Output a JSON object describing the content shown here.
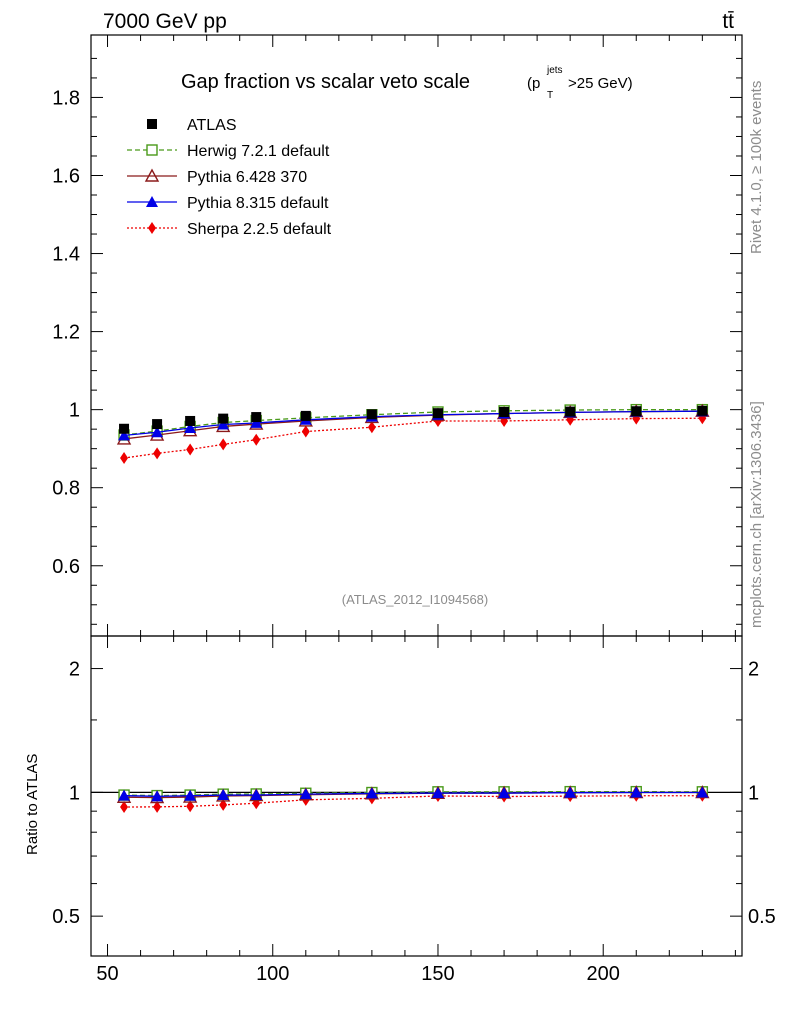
{
  "header": {
    "energy": "7000 GeV pp",
    "process": "tt̄",
    "side_top": "Rivet 4.1.0, ≥ 100k events",
    "side_bottom": "mcplots.cern.ch [arXiv:1306.3436]"
  },
  "chart_data": {
    "type": "line",
    "title": "Gap fraction vs scalar veto scale",
    "title_suffix": {
      "p": "(p",
      "sup": "jets",
      "sub": "T",
      "rest": ">25 GeV)"
    },
    "watermark": "(ATLAS_2012_I1094568)",
    "x": [
      55,
      65,
      75,
      85,
      95,
      110,
      130,
      150,
      170,
      190,
      210,
      230
    ],
    "xlim": [
      45,
      242
    ],
    "xticks": [
      50,
      100,
      150,
      200
    ],
    "main": {
      "ylim": [
        0.42,
        1.96
      ],
      "yticks": [
        0.6,
        0.8,
        1,
        1.2,
        1.4,
        1.6,
        1.8
      ],
      "ytick_labels": [
        "0.6",
        "0.8",
        "1",
        "1.2",
        "1.4",
        "1.6",
        "1.8"
      ]
    },
    "ratio": {
      "ylabel": "Ratio to ATLAS",
      "ylim": [
        0.4,
        2.4
      ],
      "yticks": [
        0.5,
        1,
        2
      ],
      "ytick_labels": [
        "0.5",
        "1",
        "2"
      ]
    },
    "series": [
      {
        "name": "ATLAS",
        "key": "atlas",
        "color": "#000000",
        "marker": "square",
        "line": "none",
        "is_data": true,
        "values": [
          0.951,
          0.963,
          0.971,
          0.977,
          0.981,
          0.984,
          0.988,
          0.991,
          0.994,
          0.995,
          0.996,
          0.997
        ]
      },
      {
        "name": "Herwig 7.2.1 default",
        "key": "herwig",
        "color": "#4a9a1a",
        "marker": "open-square",
        "line": "dashed",
        "values": [
          0.935,
          0.945,
          0.957,
          0.967,
          0.972,
          0.979,
          0.987,
          0.994,
          0.997,
          0.999,
          1.0,
          1.0
        ],
        "ratio": [
          0.985,
          0.982,
          0.985,
          0.99,
          0.991,
          0.995,
          0.999,
          1.003,
          1.003,
          1.004,
          1.004,
          1.003
        ]
      },
      {
        "name": "Pythia 6.428 370",
        "key": "py6",
        "color": "#8b1a1a",
        "marker": "open-triangle",
        "line": "solid",
        "values": [
          0.925,
          0.935,
          0.946,
          0.957,
          0.963,
          0.971,
          0.98,
          0.986,
          0.99,
          0.993,
          0.995,
          0.996
        ],
        "ratio": [
          0.973,
          0.971,
          0.974,
          0.98,
          0.982,
          0.987,
          0.992,
          0.995,
          0.996,
          0.998,
          0.999,
          0.999
        ]
      },
      {
        "name": "Pythia 8.315 default",
        "key": "py8",
        "color": "#0000e6",
        "marker": "triangle",
        "line": "solid",
        "values": [
          0.934,
          0.942,
          0.953,
          0.962,
          0.966,
          0.974,
          0.982,
          0.987,
          0.99,
          0.993,
          0.995,
          0.996
        ],
        "ratio": [
          0.982,
          0.978,
          0.981,
          0.985,
          0.985,
          0.99,
          0.994,
          0.996,
          0.996,
          0.998,
          0.999,
          0.999
        ]
      },
      {
        "name": "Sherpa 2.2.5 default",
        "key": "sherpa",
        "color": "#ee0000",
        "marker": "diamond",
        "line": "dotted",
        "values": [
          0.876,
          0.888,
          0.898,
          0.911,
          0.923,
          0.944,
          0.955,
          0.971,
          0.971,
          0.974,
          0.977,
          0.978
        ],
        "ratio": [
          0.921,
          0.922,
          0.925,
          0.932,
          0.941,
          0.959,
          0.967,
          0.98,
          0.977,
          0.979,
          0.981,
          0.981
        ]
      }
    ]
  }
}
